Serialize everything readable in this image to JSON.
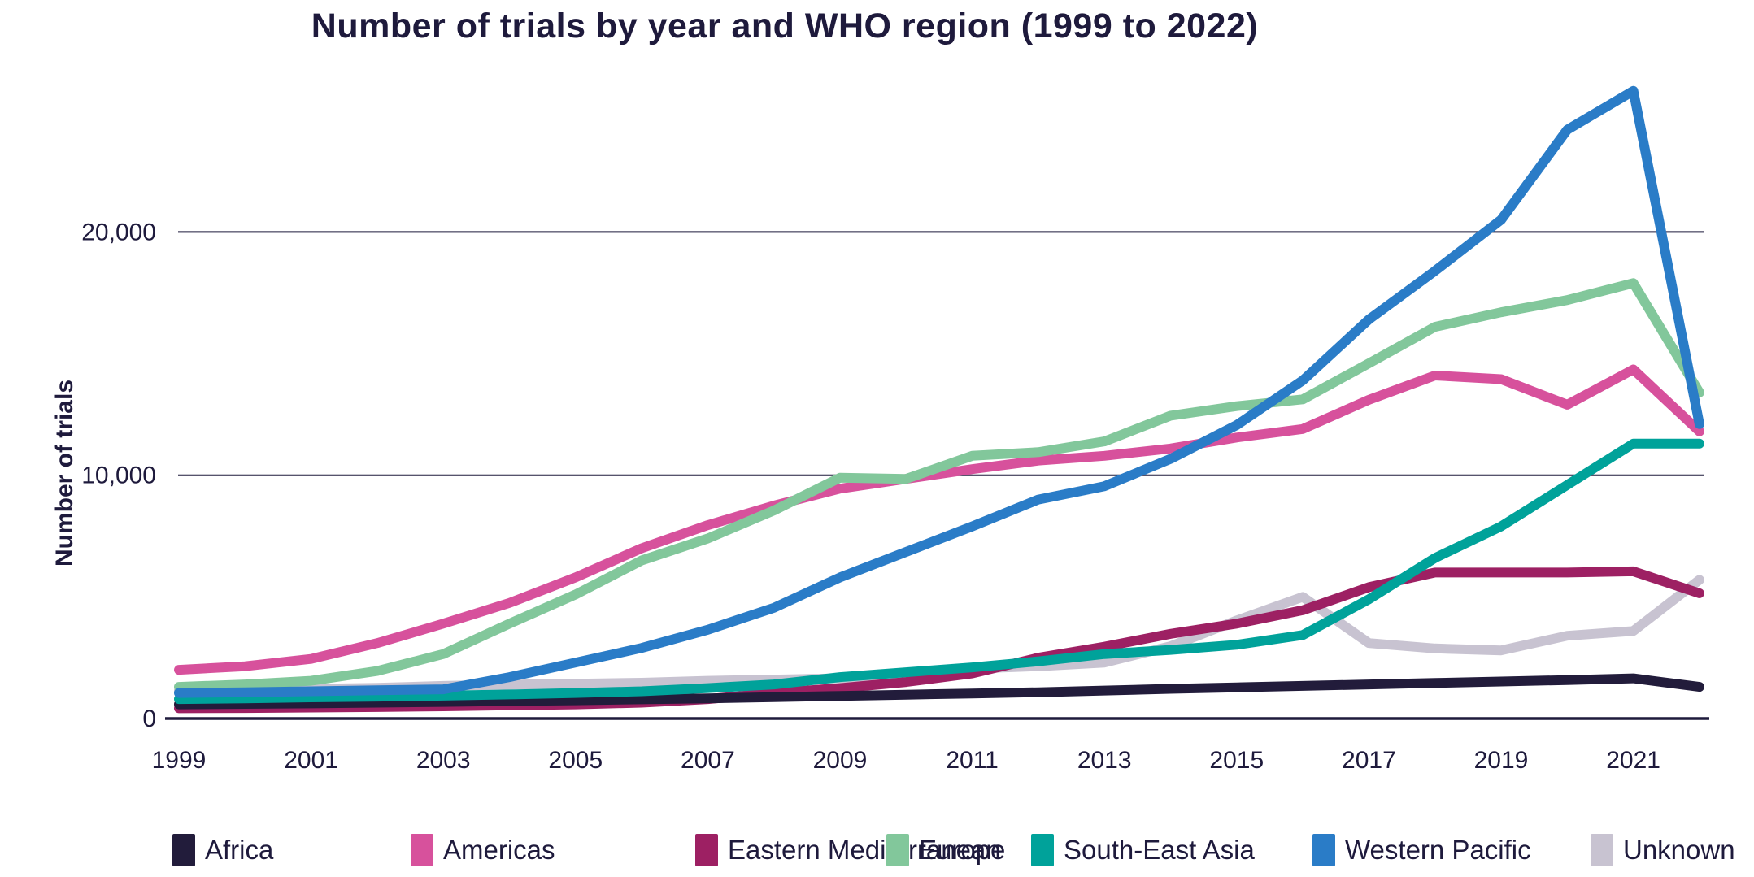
{
  "title": "Number of trials by year and WHO region (1999 to 2022)",
  "y_axis": {
    "label": "Number of trials",
    "tick_labels": [
      "0",
      "10,000",
      "20,000"
    ],
    "tick_values": [
      0,
      10000,
      20000
    ]
  },
  "x_axis": {
    "tick_labels": [
      "1999",
      "2001",
      "2003",
      "2005",
      "2007",
      "2009",
      "2011",
      "2013",
      "2015",
      "2017",
      "2019",
      "2021"
    ]
  },
  "colors": {
    "text": "#1E1A3C",
    "gridline": "#1E1A3C",
    "axis": "#1E1A3C",
    "background": "#FFFFFF"
  },
  "chart_data": {
    "type": "line",
    "title": "Number of trials by year and WHO region (1999 to 2022)",
    "xlabel": "",
    "ylabel": "Number of trials",
    "ylim": [
      0,
      26500
    ],
    "yticks": [
      0,
      10000,
      20000
    ],
    "grid": "horizontal",
    "legend_position": "bottom",
    "x": [
      1999,
      2000,
      2001,
      2002,
      2003,
      2004,
      2005,
      2006,
      2007,
      2008,
      2009,
      2010,
      2011,
      2012,
      2013,
      2014,
      2015,
      2016,
      2017,
      2018,
      2019,
      2020,
      2021,
      2022
    ],
    "series": [
      {
        "name": "Africa",
        "color": "#221C3B",
        "values": [
          580,
          600,
          620,
          650,
          680,
          720,
          750,
          790,
          830,
          880,
          930,
          980,
          1030,
          1080,
          1150,
          1220,
          1280,
          1340,
          1400,
          1460,
          1520,
          1580,
          1650,
          1300
        ]
      },
      {
        "name": "Americas",
        "color": "#D7519C",
        "values": [
          2000,
          2150,
          2450,
          3100,
          3900,
          4750,
          5800,
          7000,
          7950,
          8750,
          9450,
          9850,
          10250,
          10600,
          10800,
          11100,
          11550,
          11900,
          13100,
          14100,
          13950,
          12900,
          14350,
          11800
        ]
      },
      {
        "name": "Eastern Mediterranean",
        "color": "#9D2063",
        "values": [
          420,
          430,
          450,
          470,
          500,
          540,
          580,
          650,
          800,
          1050,
          1250,
          1500,
          1850,
          2500,
          2950,
          3480,
          3900,
          4450,
          5400,
          6000,
          6000,
          6000,
          6050,
          5150
        ]
      },
      {
        "name": "Europe",
        "color": "#82C79B",
        "values": [
          1300,
          1400,
          1550,
          1950,
          2650,
          3900,
          5100,
          6500,
          7400,
          8550,
          9900,
          9850,
          10800,
          10950,
          11390,
          12450,
          12840,
          13120,
          14600,
          16100,
          16700,
          17200,
          17900,
          13400
        ]
      },
      {
        "name": "South-East Asia",
        "color": "#00A29A",
        "values": [
          800,
          830,
          870,
          900,
          940,
          990,
          1050,
          1120,
          1250,
          1400,
          1700,
          1900,
          2100,
          2350,
          2650,
          2820,
          3030,
          3430,
          4900,
          6600,
          7900,
          9600,
          11300,
          11300
        ]
      },
      {
        "name": "Western Pacific",
        "color": "#2A7CC7",
        "values": [
          1050,
          1080,
          1120,
          1160,
          1200,
          1700,
          2300,
          2900,
          3650,
          4550,
          5800,
          6850,
          7900,
          9000,
          9550,
          10670,
          12060,
          13900,
          16400,
          18400,
          20500,
          24200,
          25800,
          12100
        ]
      },
      {
        "name": "Unknown",
        "color": "#C8C3D1",
        "values": [
          1150,
          1180,
          1220,
          1260,
          1340,
          1390,
          1430,
          1470,
          1550,
          1600,
          1650,
          1850,
          2050,
          2150,
          2300,
          2970,
          4030,
          5000,
          3100,
          2880,
          2800,
          3400,
          3600,
          5700
        ]
      }
    ]
  },
  "legend": {
    "items": [
      {
        "label": "Africa",
        "color": "#221C3B"
      },
      {
        "label": "Americas",
        "color": "#D7519C"
      },
      {
        "label": "Eastern Mediterranean",
        "color": "#9D2063"
      },
      {
        "label": "Europe",
        "color": "#82C79B"
      },
      {
        "label": "South-East Asia",
        "color": "#00A29A"
      },
      {
        "label": "Western Pacific",
        "color": "#2A7CC7"
      },
      {
        "label": "Unknown",
        "color": "#C8C3D1"
      }
    ]
  }
}
